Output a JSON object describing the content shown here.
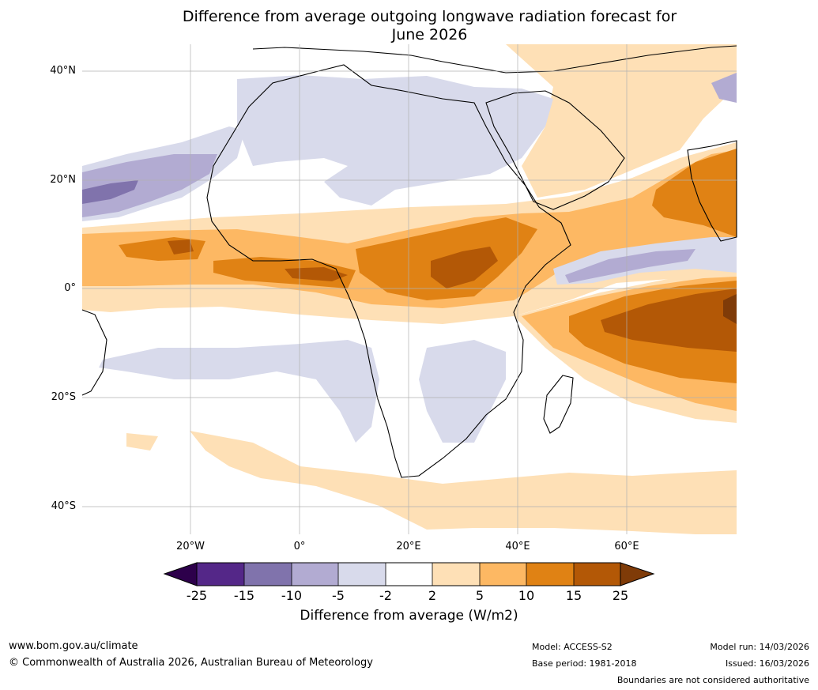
{
  "title_line1": "Difference from average outgoing longwave radiation forecast for",
  "title_line2": "June 2026",
  "lat_ticks": [
    "40°N",
    "20°N",
    "0°",
    "20°S",
    "40°S"
  ],
  "lon_ticks": [
    "20°W",
    "0°",
    "20°E",
    "40°E",
    "60°E"
  ],
  "colorbar": {
    "labels": [
      "-25",
      "-15",
      "-10",
      "-5",
      "-2",
      "2",
      "5",
      "10",
      "15",
      "25"
    ],
    "colors": {
      "below_-25": "#2d004b",
      "-25_-15": "#542788",
      "-15_-10": "#8073ac",
      "-10_-5": "#b2abd2",
      "-5_-2": "#d8daeb",
      "-2_2": "#ffffff",
      "2_5": "#fee0b6",
      "5_10": "#fdb863",
      "10_15": "#e08214",
      "15_25": "#b35806",
      "above_25": "#7f3b08"
    },
    "title": "Difference from average (W/m2)"
  },
  "footer": {
    "website": "www.bom.gov.au/climate",
    "copyright": "© Commonwealth of Australia 2026, Australian Bureau of Meteorology",
    "model": "Model: ACCESS-S2",
    "base_period": "Base period: 1981-2018",
    "model_run": "Model run: 14/03/2026",
    "issued": "Issued: 16/03/2026",
    "disclaimer": "Boundaries are not considered authoritative"
  }
}
